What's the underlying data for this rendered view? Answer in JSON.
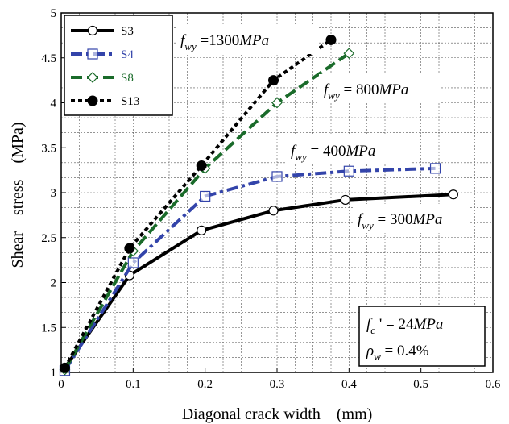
{
  "chart_data": {
    "type": "line",
    "xlabel": "Diagonal crack width    (mm)",
    "ylabel": "Shear    stress    (MPa)",
    "xlim": [
      0,
      0.6
    ],
    "ylim": [
      1,
      5
    ],
    "x_ticks": [
      0,
      0.1,
      0.2,
      0.3,
      0.4,
      0.5,
      0.6
    ],
    "y_ticks": [
      1,
      1.5,
      2,
      2.5,
      3,
      3.5,
      4,
      4.5,
      5
    ],
    "grid": true,
    "legend_position": "top-left",
    "series": [
      {
        "name": "S3",
        "color": "#000000",
        "dash": "solid",
        "marker": "circle-open",
        "x": [
          0.005,
          0.095,
          0.195,
          0.295,
          0.395,
          0.545
        ],
        "y": [
          1.05,
          2.08,
          2.58,
          2.8,
          2.92,
          2.98
        ]
      },
      {
        "name": "S4",
        "color": "#3344aa",
        "dash": "dashdot",
        "marker": "square-open",
        "x": [
          0.005,
          0.1,
          0.2,
          0.3,
          0.4,
          0.52
        ],
        "y": [
          1.02,
          2.22,
          2.96,
          3.18,
          3.24,
          3.27
        ]
      },
      {
        "name": "S8",
        "color": "#1a6b2a",
        "dash": "dashed",
        "marker": "diamond-open",
        "x": [
          0.005,
          0.1,
          0.2,
          0.3,
          0.4
        ],
        "y": [
          1.03,
          2.35,
          3.27,
          4.0,
          4.55
        ]
      },
      {
        "name": "S13",
        "color": "#000000",
        "dash": "dotted",
        "marker": "circle-filled",
        "x": [
          0.005,
          0.095,
          0.195,
          0.295,
          0.375
        ],
        "y": [
          1.05,
          2.38,
          3.3,
          4.25,
          4.7
        ]
      }
    ],
    "annotations": [
      {
        "id": "fwy1300",
        "sym": "f",
        "sub": "wy",
        "eq": " =1300",
        "unit": "MPa"
      },
      {
        "id": "fwy800",
        "sym": "f",
        "sub": "wy",
        "eq": " = 800",
        "unit": "MPa"
      },
      {
        "id": "fwy400",
        "sym": "f",
        "sub": "wy",
        "eq": " = 400",
        "unit": "MPa"
      },
      {
        "id": "fwy300",
        "sym": "f",
        "sub": "wy",
        "eq": " = 300",
        "unit": "MPa"
      }
    ],
    "material_box": {
      "fc_sym": "f",
      "fc_sub": "c",
      "fc_eq": " ' = 24",
      "fc_unit": "MPa",
      "rho_sym": "ρ",
      "rho_sub": "w",
      "rho_eq": " = 0.4%"
    }
  }
}
